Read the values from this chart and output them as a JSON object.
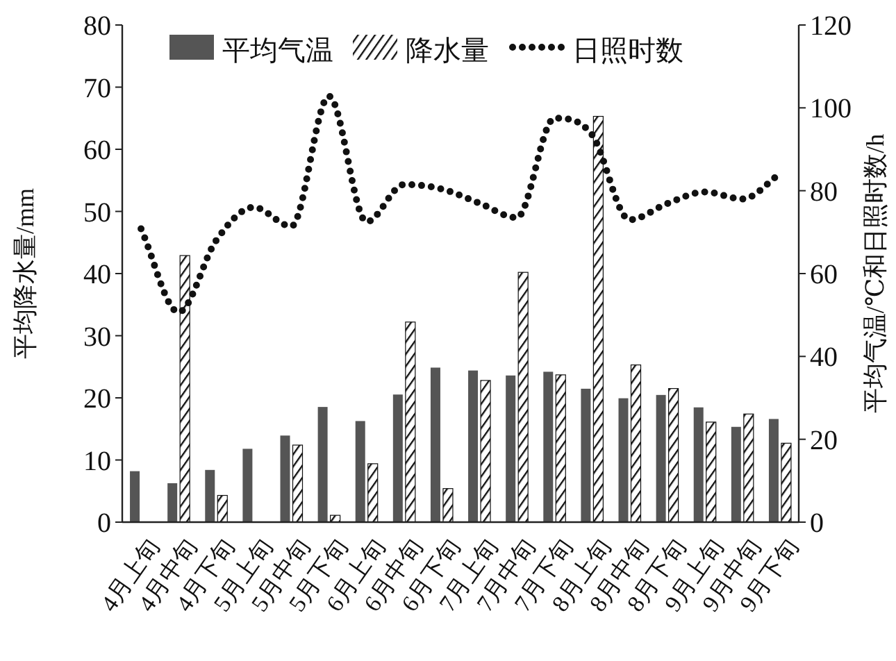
{
  "chart_data": {
    "type": "bar",
    "categories": [
      "4月上旬",
      "4月中旬",
      "4月下旬",
      "5月上旬",
      "5月中旬",
      "5月下旬",
      "6月上旬",
      "6月中旬",
      "6月下旬",
      "7月上旬",
      "7月中旬",
      "7月下旬",
      "8月上旬",
      "8月中旬",
      "8月下旬",
      "9月上旬",
      "9月中旬",
      "9月下旬"
    ],
    "series": [
      {
        "name": "平均气温",
        "axis": "y2",
        "color": "#555555",
        "values": [
          12.3,
          9.4,
          12.6,
          17.7,
          20.9,
          27.8,
          24.4,
          30.8,
          37.3,
          36.6,
          35.4,
          36.3,
          32.2,
          29.9,
          30.7,
          27.7,
          23.0,
          24.9
        ]
      },
      {
        "name": "降水量",
        "color": "#111111",
        "values": [
          0,
          42.9,
          4.3,
          0,
          12.4,
          1.1,
          9.4,
          32.2,
          5.4,
          22.8,
          40.2,
          23.7,
          65.3,
          25.3,
          21.5,
          16.1,
          17.4,
          12.7
        ]
      },
      {
        "name": "日照时数",
        "type": "line",
        "axis": "y2",
        "color": "#111111",
        "line_style": "dotted",
        "values": [
          70.8,
          50.7,
          68,
          76,
          71.4,
          102.8,
          72.5,
          81.5,
          80.4,
          77,
          73.5,
          97.5,
          93.5,
          73,
          76.9,
          79.7,
          78,
          84.1
        ]
      }
    ],
    "ylabel": "平均降水量/mm",
    "y2label": "平均气温/℃和日照时数/h",
    "ylim": [
      0,
      80
    ],
    "yticks": [
      0,
      10,
      20,
      30,
      40,
      50,
      60,
      70,
      80
    ],
    "y2lim": [
      0,
      120
    ],
    "y2ticks": [
      0,
      20,
      40,
      60,
      80,
      100,
      120
    ],
    "legend": "top"
  }
}
